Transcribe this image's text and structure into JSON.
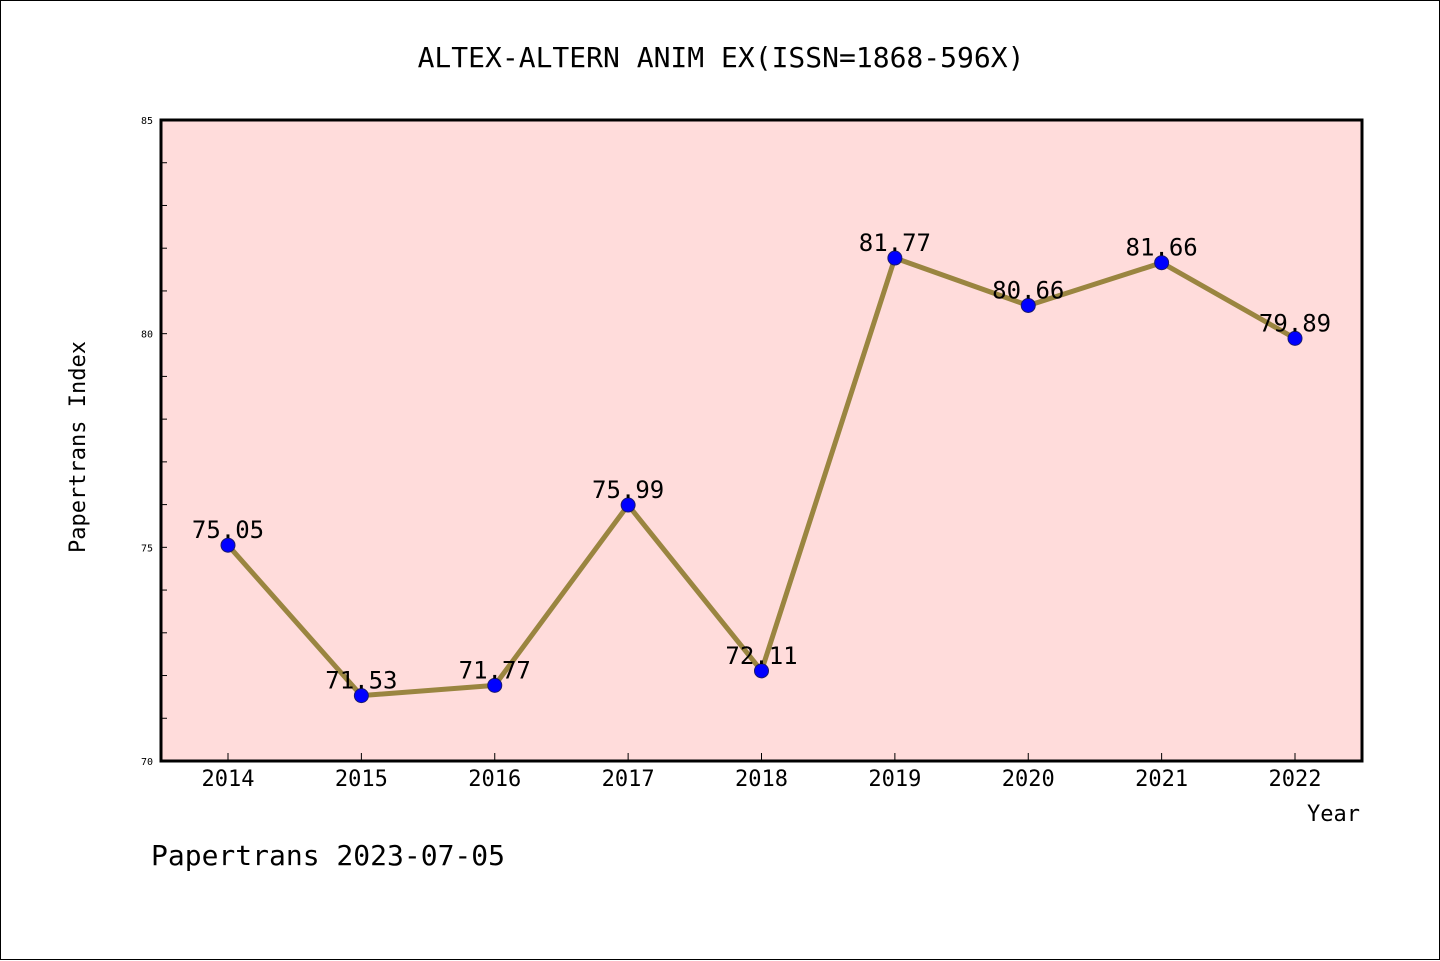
{
  "chart_data": {
    "type": "line",
    "title": "ALTEX-ALTERN ANIM EX(ISSN=1868-596X)",
    "xlabel": "Year",
    "ylabel": "Papertrans Index",
    "categories": [
      "2014",
      "2015",
      "2016",
      "2017",
      "2018",
      "2019",
      "2020",
      "2021",
      "2022"
    ],
    "series": [
      {
        "values": [
          75.05,
          71.53,
          71.77,
          75.99,
          72.11,
          81.77,
          80.66,
          81.66,
          79.89
        ],
        "labels": [
          "75.05",
          "71.53",
          "71.77",
          "75.99",
          "72.11",
          "81.77",
          "80.66",
          "81.66",
          "79.89"
        ]
      }
    ],
    "ylim": [
      70,
      85
    ],
    "yticks": [
      "70",
      "75",
      "80",
      "85"
    ],
    "y_minor_step": 1,
    "grid": false,
    "legend": "none",
    "colors": {
      "plot_background": "#ffdcdb",
      "line": "#9a8540",
      "marker": "#0000ff",
      "marker_edge": "#1a1a6e"
    }
  },
  "footer": {
    "text": "Papertrans 2023-07-05"
  }
}
